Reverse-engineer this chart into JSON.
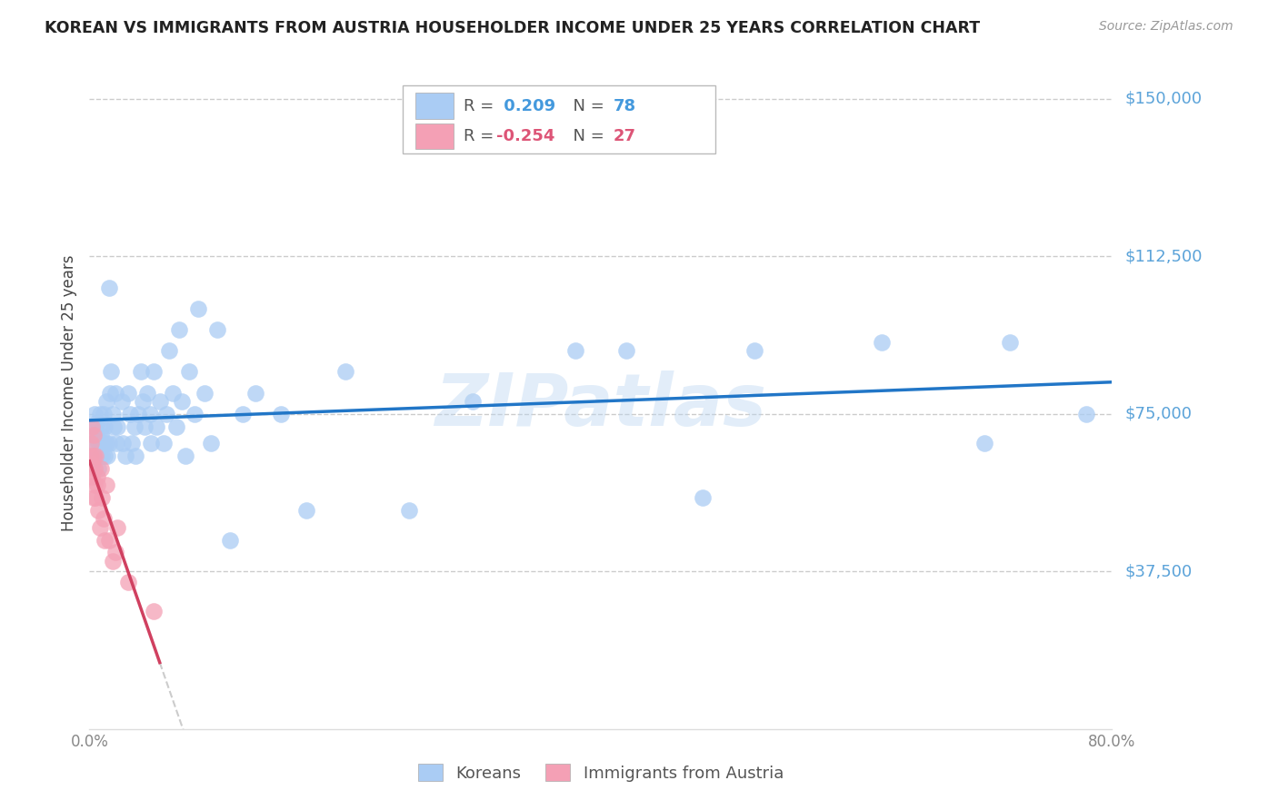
{
  "title": "KOREAN VS IMMIGRANTS FROM AUSTRIA HOUSEHOLDER INCOME UNDER 25 YEARS CORRELATION CHART",
  "source": "Source: ZipAtlas.com",
  "ylabel": "Householder Income Under 25 years",
  "ytick_labels": [
    "$150,000",
    "$112,500",
    "$75,000",
    "$37,500"
  ],
  "ytick_values": [
    150000,
    112500,
    75000,
    37500
  ],
  "xlim": [
    0.0,
    0.8
  ],
  "ylim": [
    0,
    160000
  ],
  "korean_R": 0.209,
  "korean_N": 78,
  "austria_R": -0.254,
  "austria_N": 27,
  "korean_color": "#aaccf4",
  "austria_color": "#f4a0b5",
  "trend_korean_color": "#2176c7",
  "trend_austria_color": "#d04060",
  "trend_extend_color": "#cccccc",
  "watermark": "ZIPatlas",
  "background_color": "#ffffff",
  "korean_scatter_x": [
    0.002,
    0.003,
    0.004,
    0.005,
    0.005,
    0.006,
    0.007,
    0.007,
    0.008,
    0.008,
    0.009,
    0.009,
    0.01,
    0.01,
    0.011,
    0.011,
    0.012,
    0.012,
    0.013,
    0.013,
    0.014,
    0.015,
    0.015,
    0.016,
    0.017,
    0.018,
    0.019,
    0.02,
    0.021,
    0.022,
    0.025,
    0.026,
    0.028,
    0.03,
    0.032,
    0.033,
    0.035,
    0.036,
    0.038,
    0.04,
    0.042,
    0.043,
    0.045,
    0.047,
    0.048,
    0.05,
    0.052,
    0.055,
    0.058,
    0.06,
    0.062,
    0.065,
    0.068,
    0.07,
    0.072,
    0.075,
    0.078,
    0.082,
    0.085,
    0.09,
    0.095,
    0.1,
    0.11,
    0.12,
    0.13,
    0.15,
    0.17,
    0.2,
    0.25,
    0.3,
    0.38,
    0.42,
    0.48,
    0.52,
    0.62,
    0.7,
    0.72,
    0.78
  ],
  "korean_scatter_y": [
    68000,
    72000,
    75000,
    65000,
    70000,
    73000,
    68000,
    62000,
    65000,
    75000,
    70000,
    68000,
    72000,
    65000,
    68000,
    75000,
    65000,
    72000,
    78000,
    68000,
    65000,
    105000,
    68000,
    80000,
    85000,
    75000,
    72000,
    80000,
    68000,
    72000,
    78000,
    68000,
    65000,
    80000,
    75000,
    68000,
    72000,
    65000,
    75000,
    85000,
    78000,
    72000,
    80000,
    75000,
    68000,
    85000,
    72000,
    78000,
    68000,
    75000,
    90000,
    80000,
    72000,
    95000,
    78000,
    65000,
    85000,
    75000,
    100000,
    80000,
    68000,
    95000,
    45000,
    75000,
    80000,
    75000,
    52000,
    85000,
    52000,
    78000,
    90000,
    90000,
    55000,
    90000,
    92000,
    68000,
    92000,
    75000
  ],
  "austria_scatter_x": [
    0.001,
    0.001,
    0.002,
    0.002,
    0.002,
    0.003,
    0.003,
    0.003,
    0.004,
    0.004,
    0.005,
    0.005,
    0.006,
    0.006,
    0.007,
    0.008,
    0.009,
    0.01,
    0.011,
    0.012,
    0.013,
    0.015,
    0.018,
    0.02,
    0.022,
    0.03,
    0.05
  ],
  "austria_scatter_y": [
    65000,
    68000,
    72000,
    63000,
    60000,
    65000,
    55000,
    70000,
    62000,
    58000,
    65000,
    55000,
    60000,
    58000,
    52000,
    48000,
    62000,
    55000,
    50000,
    45000,
    58000,
    45000,
    40000,
    42000,
    48000,
    35000,
    28000
  ]
}
